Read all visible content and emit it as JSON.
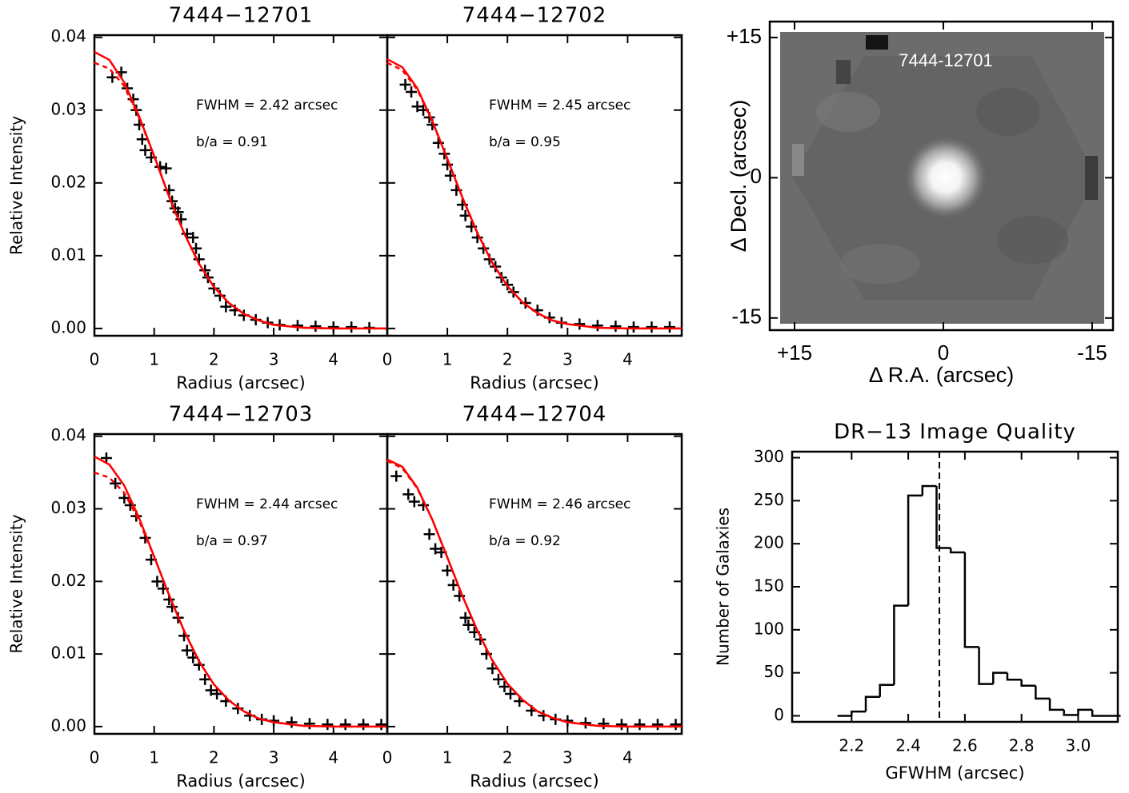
{
  "chart_data": [
    {
      "type": "scatter",
      "title": "7444−12701",
      "x_label": "Radius (arcsec)",
      "y_label": "Relative Intensity",
      "annotations": [
        "FWHM = 2.42 arcsec",
        "b/a = 0.91"
      ],
      "xlim": [
        0,
        4.9
      ],
      "ylim": [
        -0.001,
        0.0403
      ],
      "xticks": [
        0,
        1,
        2,
        3,
        4
      ],
      "yticks": [
        {
          "value": 0,
          "label": "0.00"
        },
        0.01,
        0.02,
        0.03,
        0.04
      ],
      "ytick_labels": true,
      "series": [
        {
          "type": "scatter",
          "color": "#000000",
          "x": [
            0.3,
            0.45,
            0.55,
            0.65,
            0.7,
            0.75,
            0.8,
            0.85,
            0.95,
            1.1,
            1.2,
            1.25,
            1.3,
            1.35,
            1.4,
            1.45,
            1.55,
            1.65,
            1.7,
            1.75,
            1.85,
            1.9,
            2.0,
            2.1,
            2.2,
            2.35,
            2.5,
            2.7,
            2.9,
            3.1,
            3.4,
            3.7,
            4.0,
            4.3,
            4.6
          ],
          "values": [
            0.0345,
            0.0352,
            0.033,
            0.0315,
            0.03,
            0.028,
            0.026,
            0.0245,
            0.0235,
            0.0222,
            0.022,
            0.019,
            0.0175,
            0.0165,
            0.016,
            0.015,
            0.013,
            0.0125,
            0.011,
            0.0095,
            0.008,
            0.007,
            0.0055,
            0.0045,
            0.003,
            0.0025,
            0.0018,
            0.0012,
            0.0008,
            0.0005,
            0.0004,
            0.0003,
            0.0002,
            0.0002,
            0.0001
          ]
        },
        {
          "type": "line",
          "color": "#ff0000",
          "dashed": false,
          "x": [
            0,
            0.25,
            0.5,
            0.75,
            1,
            1.25,
            1.5,
            1.75,
            2,
            2.25,
            2.5,
            2.75,
            3,
            3.5,
            4,
            4.5,
            4.9
          ],
          "values": [
            0.038,
            0.0369,
            0.0338,
            0.0291,
            0.0237,
            0.0181,
            0.0131,
            0.0089,
            0.0057,
            0.0035,
            0.002,
            0.0011,
            0.0005,
            0.0001,
            0,
            0,
            0
          ]
        },
        {
          "type": "line",
          "color": "#ff0000",
          "dashed": true,
          "x": [
            0,
            0.25,
            0.5,
            0.75,
            1,
            1.25,
            1.5,
            1.75,
            2,
            2.25,
            2.5,
            2.75,
            3,
            3.5,
            4,
            4.5,
            4.9
          ],
          "values": [
            0.0365,
            0.0357,
            0.0333,
            0.0289,
            0.0237,
            0.0181,
            0.0131,
            0.0089,
            0.0057,
            0.0035,
            0.002,
            0.0011,
            0.0005,
            0.0001,
            0,
            0,
            0
          ]
        }
      ]
    },
    {
      "type": "scatter",
      "title": "7444−12702",
      "x_label": "Radius (arcsec)",
      "annotations": [
        "FWHM = 2.45 arcsec",
        "b/a = 0.95"
      ],
      "xlim": [
        0,
        4.9
      ],
      "ylim": [
        -0.001,
        0.0403
      ],
      "xticks": [
        0,
        1,
        2,
        3,
        4
      ],
      "yticks": [
        0,
        0.01,
        0.02,
        0.03,
        0.04
      ],
      "ytick_labels": false,
      "series": [
        {
          "type": "scatter",
          "color": "#000000",
          "x": [
            0.3,
            0.4,
            0.5,
            0.6,
            0.7,
            0.75,
            0.85,
            0.95,
            1.0,
            1.05,
            1.15,
            1.25,
            1.3,
            1.4,
            1.5,
            1.6,
            1.7,
            1.8,
            1.9,
            2.0,
            2.1,
            2.3,
            2.5,
            2.7,
            2.9,
            3.2,
            3.5,
            3.8,
            4.1,
            4.4,
            4.7
          ],
          "values": [
            0.0335,
            0.0325,
            0.0305,
            0.03,
            0.029,
            0.028,
            0.0255,
            0.024,
            0.0225,
            0.021,
            0.019,
            0.017,
            0.0155,
            0.014,
            0.0125,
            0.011,
            0.0095,
            0.0085,
            0.007,
            0.006,
            0.005,
            0.0035,
            0.0025,
            0.0015,
            0.0008,
            0.0006,
            0.0004,
            0.0003,
            0.0002,
            0.0002,
            0.0002
          ]
        },
        {
          "type": "line",
          "color": "#ff0000",
          "dashed": false,
          "x": [
            0,
            0.25,
            0.5,
            0.75,
            1,
            1.25,
            1.5,
            1.75,
            2,
            2.25,
            2.5,
            2.75,
            3,
            3.5,
            4,
            4.5,
            4.9
          ],
          "values": [
            0.037,
            0.0359,
            0.033,
            0.0285,
            0.0233,
            0.018,
            0.0131,
            0.009,
            0.0058,
            0.0036,
            0.0021,
            0.0011,
            0.0006,
            0.0001,
            0,
            0,
            0
          ]
        },
        {
          "type": "line",
          "color": "#ff0000",
          "dashed": true,
          "x": [
            0,
            0.25,
            0.5,
            0.75,
            1,
            1.25,
            1.5,
            1.75,
            2,
            2.25,
            2.5,
            2.75,
            3,
            3.5,
            4,
            4.5,
            4.9
          ],
          "values": [
            0.0365,
            0.0355,
            0.0328,
            0.0284,
            0.0233,
            0.018,
            0.0131,
            0.009,
            0.0058,
            0.0036,
            0.0021,
            0.0011,
            0.0006,
            0.0001,
            0,
            0,
            0
          ]
        }
      ]
    },
    {
      "type": "scatter",
      "title": "7444−12703",
      "x_label": "Radius (arcsec)",
      "y_label": "Relative Intensity",
      "annotations": [
        "FWHM = 2.44 arcsec",
        "b/a = 0.97"
      ],
      "xlim": [
        0,
        4.9
      ],
      "ylim": [
        -0.001,
        0.0403
      ],
      "xticks": [
        0,
        1,
        2,
        3,
        4
      ],
      "yticks": [
        {
          "value": 0,
          "label": "0.00"
        },
        0.01,
        0.02,
        0.03,
        0.04
      ],
      "ytick_labels": true,
      "series": [
        {
          "type": "scatter",
          "color": "#000000",
          "x": [
            0.2,
            0.35,
            0.5,
            0.6,
            0.7,
            0.85,
            0.95,
            1.05,
            1.15,
            1.25,
            1.3,
            1.4,
            1.5,
            1.55,
            1.65,
            1.75,
            1.85,
            1.95,
            2.05,
            2.2,
            2.4,
            2.6,
            2.8,
            3.0,
            3.3,
            3.6,
            3.9,
            4.2,
            4.5,
            4.8
          ],
          "values": [
            0.037,
            0.0335,
            0.0315,
            0.0305,
            0.029,
            0.026,
            0.023,
            0.02,
            0.019,
            0.0175,
            0.0165,
            0.015,
            0.0125,
            0.0105,
            0.0095,
            0.0085,
            0.0065,
            0.005,
            0.0045,
            0.0035,
            0.0025,
            0.0015,
            0.001,
            0.0008,
            0.0006,
            0.0004,
            0.0003,
            0.0003,
            0.0003,
            0.0003
          ]
        },
        {
          "type": "line",
          "color": "#ff0000",
          "dashed": false,
          "x": [
            0,
            0.25,
            0.5,
            0.75,
            1,
            1.25,
            1.5,
            1.75,
            2,
            2.25,
            2.5,
            2.75,
            3,
            3.5,
            4,
            4.5,
            4.9
          ],
          "values": [
            0.0372,
            0.0361,
            0.0332,
            0.0287,
            0.0234,
            0.0181,
            0.0132,
            0.009,
            0.0058,
            0.0036,
            0.0021,
            0.0011,
            0.0006,
            0.0001,
            0,
            0,
            0
          ]
        },
        {
          "type": "line",
          "color": "#ff0000",
          "dashed": true,
          "x": [
            0,
            0.25,
            0.5,
            0.75,
            1,
            1.25,
            1.5,
            1.75,
            2,
            2.25,
            2.5,
            2.75,
            3,
            3.5,
            4,
            4.5,
            4.9
          ],
          "values": [
            0.035,
            0.0343,
            0.0322,
            0.0283,
            0.0234,
            0.0181,
            0.0132,
            0.009,
            0.0058,
            0.0036,
            0.0021,
            0.0011,
            0.0006,
            0.0001,
            0,
            0,
            0
          ]
        }
      ]
    },
    {
      "type": "scatter",
      "title": "7444−12704",
      "x_label": "Radius (arcsec)",
      "annotations": [
        "FWHM = 2.46 arcsec",
        "b/a = 0.92"
      ],
      "xlim": [
        0,
        4.9
      ],
      "ylim": [
        -0.001,
        0.0403
      ],
      "xticks": [
        0,
        1,
        2,
        3,
        4
      ],
      "yticks": [
        0,
        0.01,
        0.02,
        0.03,
        0.04
      ],
      "ytick_labels": false,
      "series": [
        {
          "type": "scatter",
          "color": "#000000",
          "x": [
            0.15,
            0.35,
            0.45,
            0.6,
            0.7,
            0.8,
            0.9,
            1.0,
            1.1,
            1.2,
            1.3,
            1.35,
            1.45,
            1.55,
            1.65,
            1.75,
            1.85,
            1.95,
            2.05,
            2.2,
            2.4,
            2.6,
            2.8,
            3.0,
            3.3,
            3.6,
            3.9,
            4.2,
            4.5,
            4.8
          ],
          "values": [
            0.0345,
            0.032,
            0.031,
            0.0305,
            0.0265,
            0.0245,
            0.024,
            0.0215,
            0.0195,
            0.018,
            0.015,
            0.014,
            0.013,
            0.012,
            0.01,
            0.008,
            0.0065,
            0.0055,
            0.0045,
            0.0035,
            0.0022,
            0.0015,
            0.001,
            0.0008,
            0.0005,
            0.0004,
            0.0003,
            0.0003,
            0.0003,
            0.0003
          ]
        },
        {
          "type": "line",
          "color": "#ff0000",
          "dashed": false,
          "x": [
            0,
            0.25,
            0.5,
            0.75,
            1,
            1.25,
            1.5,
            1.75,
            2,
            2.25,
            2.5,
            2.75,
            3,
            3.5,
            4,
            4.5,
            4.9
          ],
          "values": [
            0.0368,
            0.0358,
            0.0329,
            0.0285,
            0.0233,
            0.018,
            0.0132,
            0.0091,
            0.0059,
            0.0037,
            0.0021,
            0.0012,
            0.0006,
            0.0001,
            0,
            0,
            0
          ]
        },
        {
          "type": "line",
          "color": "#ff0000",
          "dashed": true,
          "x": [
            0,
            0.25,
            0.5,
            0.75,
            1,
            1.25,
            1.5,
            1.75,
            2,
            2.25,
            2.5,
            2.75,
            3,
            3.5,
            4,
            4.5,
            4.9
          ],
          "values": [
            0.0366,
            0.0356,
            0.0328,
            0.0285,
            0.0233,
            0.018,
            0.0132,
            0.0091,
            0.0059,
            0.0037,
            0.0021,
            0.0012,
            0.0006,
            0.0001,
            0,
            0,
            0
          ]
        }
      ]
    },
    {
      "type": "image",
      "annotation": "7444-12701",
      "x_label": "Δ R.A. (arcsec)",
      "y_label": "Δ Decl. (arcsec)",
      "xlim": [
        17.5,
        -17.1
      ],
      "ylim": [
        -16.3,
        16.7
      ],
      "xticks": [
        {
          "value": 15,
          "label": "+15"
        },
        0,
        -15
      ],
      "yticks": [
        {
          "value": 15,
          "label": "+15"
        },
        0,
        -15
      ]
    },
    {
      "type": "histogram",
      "title": "DR−13 Image Quality",
      "x_label": "GFWHM (arcsec)",
      "y_label": "Number of Galaxies",
      "xlim": [
        1.99,
        3.14
      ],
      "ylim": [
        -7,
        307
      ],
      "xticks": [
        2.2,
        2.4,
        2.6,
        2.8,
        {
          "value": 3.0,
          "label": "3.0"
        }
      ],
      "yticks": [
        0,
        50,
        100,
        150,
        200,
        250,
        300
      ],
      "bins": [
        2.15,
        2.2,
        2.25,
        2.3,
        2.35,
        2.4,
        2.45,
        2.5,
        2.55,
        2.6,
        2.65,
        2.7,
        2.75,
        2.8,
        2.85,
        2.9,
        2.95,
        3.0,
        3.05,
        3.1,
        3.15
      ],
      "values": [
        0,
        5,
        22,
        36,
        128,
        256,
        267,
        195,
        190,
        80,
        37,
        50,
        42,
        35,
        20,
        7,
        1,
        7,
        0,
        0
      ],
      "color": "#000000",
      "vline": 2.51
    }
  ]
}
